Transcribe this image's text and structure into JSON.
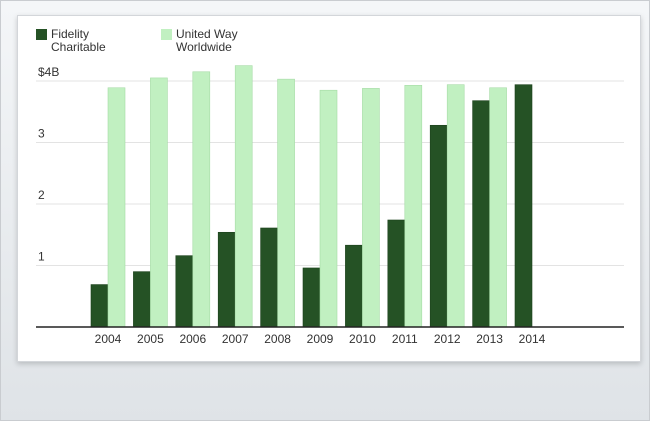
{
  "chart_data": {
    "type": "bar",
    "categories": [
      "2004",
      "2005",
      "2006",
      "2007",
      "2008",
      "2009",
      "2010",
      "2011",
      "2012",
      "2013",
      "2014"
    ],
    "series": [
      {
        "name": "Fidelity\nCharitable",
        "color": "#255225",
        "values": [
          0.69,
          0.9,
          1.16,
          1.54,
          1.61,
          0.96,
          1.33,
          1.74,
          3.28,
          3.68,
          3.94
        ]
      },
      {
        "name": "United Way\nWorldwide",
        "color": "#c1f0c1",
        "values": [
          3.89,
          4.05,
          4.15,
          4.25,
          4.03,
          3.85,
          3.88,
          3.93,
          3.94,
          3.89,
          null
        ]
      }
    ],
    "y_ticks": [
      {
        "value": 1,
        "label": "1"
      },
      {
        "value": 2,
        "label": "2"
      },
      {
        "value": 3,
        "label": "3"
      },
      {
        "value": 4,
        "label": "$4B"
      }
    ],
    "ylim": [
      0,
      4.3
    ],
    "grid": true,
    "legend": "top-left",
    "title": "",
    "xlabel": "",
    "ylabel": ""
  }
}
